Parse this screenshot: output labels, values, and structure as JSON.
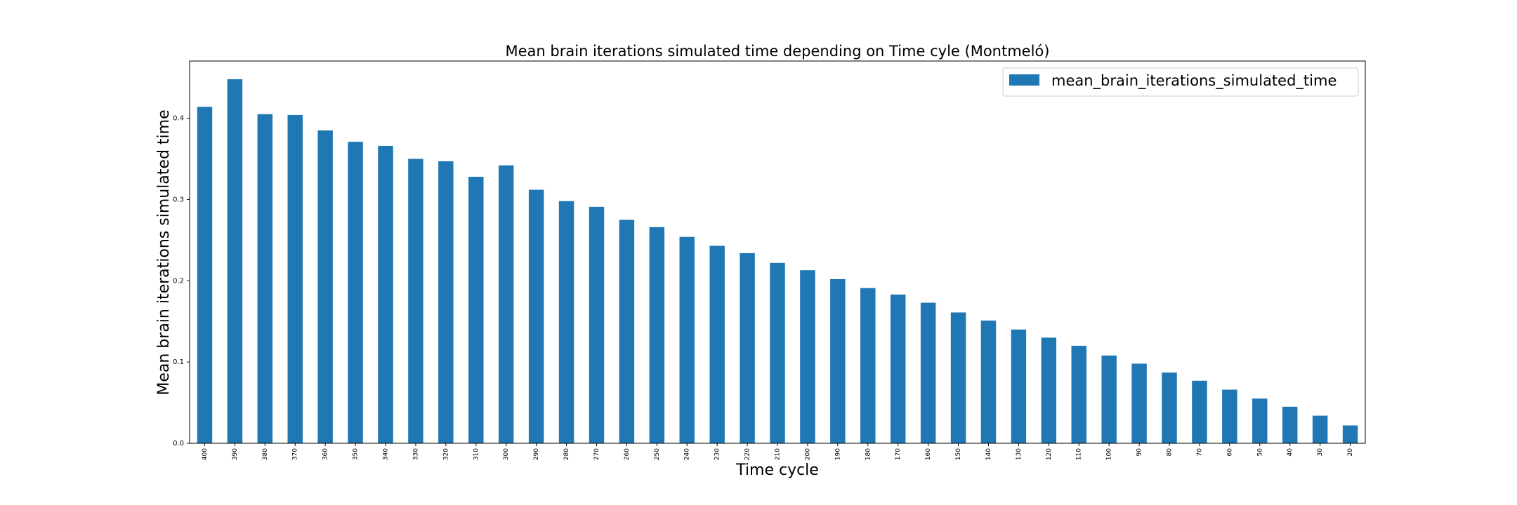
{
  "chart_data": {
    "type": "bar",
    "title": "Mean brain iterations simulated time depending on Time cyle (Montmeló)",
    "xlabel": "Time cycle",
    "ylabel": "Mean brain iterations simulated time",
    "categories": [
      "400",
      "390",
      "380",
      "370",
      "360",
      "350",
      "340",
      "330",
      "320",
      "310",
      "300",
      "290",
      "280",
      "270",
      "260",
      "250",
      "240",
      "230",
      "220",
      "210",
      "200",
      "190",
      "180",
      "170",
      "160",
      "150",
      "140",
      "130",
      "120",
      "110",
      "100",
      "90",
      "80",
      "70",
      "60",
      "50",
      "40",
      "30",
      "20"
    ],
    "series": [
      {
        "name": "mean_brain_iterations_simulated_time",
        "color": "#1f77b4",
        "values": [
          0.414,
          0.448,
          0.405,
          0.404,
          0.385,
          0.371,
          0.366,
          0.35,
          0.347,
          0.328,
          0.342,
          0.312,
          0.298,
          0.291,
          0.275,
          0.266,
          0.254,
          0.243,
          0.234,
          0.222,
          0.213,
          0.202,
          0.191,
          0.183,
          0.173,
          0.161,
          0.151,
          0.14,
          0.13,
          0.12,
          0.108,
          0.098,
          0.087,
          0.077,
          0.066,
          0.055,
          0.045,
          0.034,
          0.022
        ]
      }
    ],
    "y_ticks": [
      "0.0",
      "0.1",
      "0.2",
      "0.3",
      "0.4"
    ],
    "ylim": [
      0,
      0.4704
    ],
    "grid": false,
    "legend_position": "top-right"
  }
}
